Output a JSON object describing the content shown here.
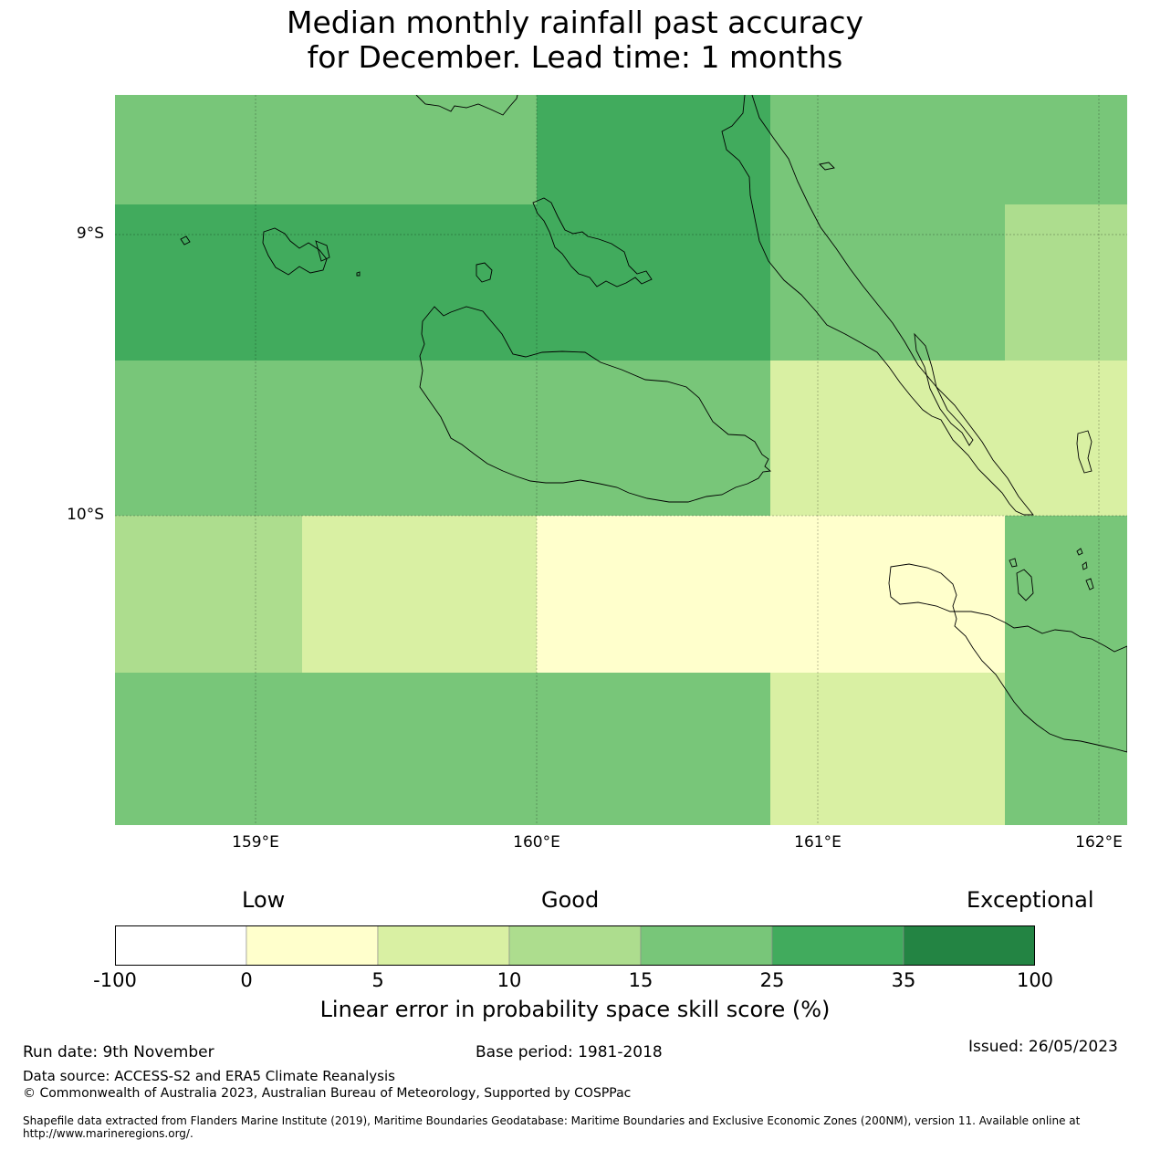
{
  "title_line1": "Median monthly rainfall past accuracy",
  "title_line2": "for December. Lead time: 1 months",
  "map": {
    "lat_labels": [
      "9°S",
      "10°S"
    ],
    "lon_labels": [
      "159°E",
      "160°E",
      "161°E",
      "162°E"
    ],
    "grid_colors": [
      [
        "#78c679",
        "#78c679",
        "#78c679",
        "#41ab5d",
        "#78c679",
        "#78c679",
        "#78c679"
      ],
      [
        "#41ab5d",
        "#41ab5d",
        "#41ab5d",
        "#41ab5d",
        "#78c679",
        "#addd8e",
        "#addd8e"
      ],
      [
        "#78c679",
        "#78c679",
        "#78c679",
        "#78c679",
        "#d9f0a3",
        "#d9f0a3",
        "#d9f0a3"
      ],
      [
        "#addd8e",
        "#d9f0a3",
        "#d9f0a3",
        "#ffffcc",
        "#ffffcc",
        "#78c679",
        "#78c679"
      ],
      [
        "#78c679",
        "#78c679",
        "#78c679",
        "#78c679",
        "#d9f0a3",
        "#78c679",
        "#78c679"
      ]
    ]
  },
  "legend": {
    "low": "Low",
    "good": "Good",
    "exceptional": "Exceptional",
    "ticks": [
      "-100",
      "0",
      "5",
      "10",
      "15",
      "25",
      "35",
      "100"
    ],
    "colors": [
      "#ffffff",
      "#ffffcc",
      "#d9f0a3",
      "#addd8e",
      "#78c679",
      "#41ab5d",
      "#238443"
    ],
    "caption": "Linear error in probability space skill score (%)"
  },
  "footer": {
    "run_date": "Run date: 9th November",
    "base_period": "Base period: 1981-2018",
    "issued": "Issued: 26/05/2023",
    "data_source": "Data source: ACCESS-S2 and ERA5 Climate Reanalysis",
    "copyright": "© Commonwealth of Australia 2023, Australian Bureau of Meteorology, Supported by COSPPac",
    "shapefile": "Shapefile data extracted from Flanders Marine Institute (2019), Maritime Boundaries Geodatabase: Maritime Boundaries and Exclusive Economic Zones (200NM), version 11. Available online at http://www.marineregions.org/."
  }
}
